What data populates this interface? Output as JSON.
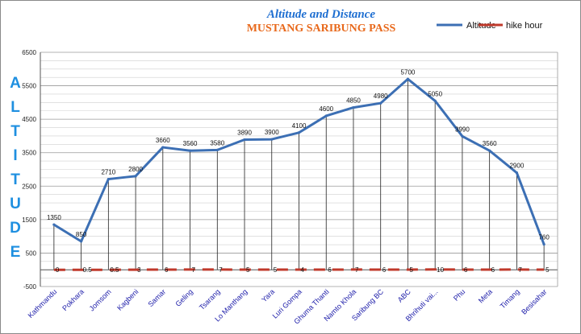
{
  "chart_data": {
    "type": "line",
    "title": "Altitude and Distance",
    "subtitle": "MUSTANG SARIBUNG PASS",
    "ylabel": "ALTITUDE",
    "xlabel": "",
    "ylim": [
      -500,
      6500
    ],
    "yticks": [
      -500,
      500,
      1500,
      2500,
      3500,
      4500,
      5500,
      6500
    ],
    "grid": true,
    "legend_position": "top-right",
    "categories": [
      "Kathmandu",
      "Pokhara",
      "Jomsom",
      "Kagbeni",
      "Samar",
      "Geling",
      "Tsarang",
      "Lo Manthang",
      "Yara",
      "Luri Gompa",
      "Ghuma Thanti",
      "Namto Khola",
      "Saribung BC",
      "ABC",
      "Bhrihuti vai...",
      "Phu",
      "Meta",
      "Timang",
      "Besisahar"
    ],
    "series": [
      {
        "name": "Altitude",
        "color": "#3c6fb4",
        "values": [
          1350,
          850,
          2710,
          2800,
          3660,
          3560,
          3580,
          3890,
          3900,
          4100,
          4600,
          4850,
          4980,
          5700,
          5050,
          3990,
          3560,
          2900,
          760
        ]
      },
      {
        "name": "hike hour",
        "color": "#c0392b",
        "values": [
          0,
          0.5,
          0.5,
          3,
          6,
          7,
          7,
          5,
          5,
          4,
          6,
          7,
          6,
          5,
          10,
          6,
          6,
          7,
          5
        ]
      }
    ]
  }
}
